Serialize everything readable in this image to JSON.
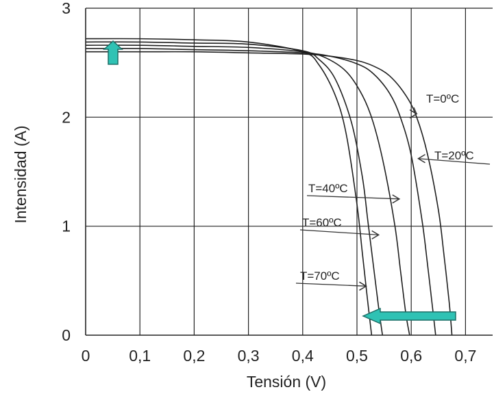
{
  "chart_data": {
    "type": "line",
    "title": "",
    "xlabel": "Tensión (V)",
    "ylabel": "Intensidad (A)",
    "xlim": [
      0,
      0.75
    ],
    "ylim": [
      0,
      3
    ],
    "grid": true,
    "x_ticks": [
      {
        "value": 0,
        "label": "0"
      },
      {
        "value": 0.1,
        "label": "0,1"
      },
      {
        "value": 0.2,
        "label": "0,2"
      },
      {
        "value": 0.3,
        "label": "0,3"
      },
      {
        "value": 0.4,
        "label": "0,4"
      },
      {
        "value": 0.5,
        "label": "0,5"
      },
      {
        "value": 0.6,
        "label": "0,6"
      },
      {
        "value": 0.7,
        "label": "0,7"
      }
    ],
    "y_ticks": [
      {
        "value": 0,
        "label": "0"
      },
      {
        "value": 1,
        "label": "1"
      },
      {
        "value": 2,
        "label": "2"
      },
      {
        "value": 3,
        "label": "3"
      }
    ],
    "series": [
      {
        "name": "T=0ºC",
        "x": [
          0,
          0.1,
          0.2,
          0.3,
          0.4,
          0.45,
          0.5,
          0.53,
          0.56,
          0.59,
          0.61,
          0.63,
          0.65,
          0.66,
          0.67,
          0.675
        ],
        "y": [
          2.6,
          2.6,
          2.6,
          2.59,
          2.58,
          2.56,
          2.52,
          2.47,
          2.38,
          2.2,
          2.0,
          1.66,
          1.15,
          0.75,
          0.3,
          0.0
        ]
      },
      {
        "name": "T=20ºC",
        "x": [
          0,
          0.1,
          0.2,
          0.3,
          0.4,
          0.45,
          0.5,
          0.53,
          0.56,
          0.58,
          0.6,
          0.62,
          0.63,
          0.64,
          0.645
        ],
        "y": [
          2.63,
          2.63,
          2.62,
          2.61,
          2.59,
          2.56,
          2.49,
          2.4,
          2.22,
          2.0,
          1.65,
          1.05,
          0.65,
          0.22,
          0.0
        ]
      },
      {
        "name": "T=40ºC",
        "x": [
          0,
          0.1,
          0.2,
          0.3,
          0.4,
          0.44,
          0.48,
          0.51,
          0.53,
          0.55,
          0.57,
          0.58,
          0.59,
          0.597
        ],
        "y": [
          2.66,
          2.66,
          2.65,
          2.64,
          2.6,
          2.55,
          2.42,
          2.2,
          1.95,
          1.55,
          1.0,
          0.6,
          0.2,
          0.0
        ]
      },
      {
        "name": "T=60ºC",
        "x": [
          0,
          0.1,
          0.2,
          0.3,
          0.4,
          0.43,
          0.46,
          0.49,
          0.51,
          0.52,
          0.53,
          0.54,
          0.547
        ],
        "y": [
          2.69,
          2.69,
          2.68,
          2.67,
          2.61,
          2.53,
          2.35,
          1.95,
          1.45,
          1.05,
          0.65,
          0.25,
          0.0
        ]
      },
      {
        "name": "T=70ºC",
        "x": [
          0,
          0.1,
          0.2,
          0.3,
          0.4,
          0.43,
          0.46,
          0.48,
          0.5,
          0.51,
          0.52,
          0.527
        ],
        "y": [
          2.72,
          2.72,
          2.71,
          2.69,
          2.6,
          2.48,
          2.2,
          1.85,
          1.2,
          0.75,
          0.3,
          0.0
        ]
      }
    ],
    "annotations": [
      {
        "text": "T=0ºC",
        "points_to": [
          0.61,
          2.03
        ]
      },
      {
        "text": "T=20ºC",
        "points_to": [
          0.613,
          1.62
        ]
      },
      {
        "text": "T=40ºC",
        "points_to": [
          0.578,
          1.25
        ]
      },
      {
        "text": "T=60ºC",
        "points_to": [
          0.54,
          0.92
        ]
      },
      {
        "text": "T=70ºC",
        "points_to": [
          0.517,
          0.45
        ]
      }
    ],
    "trend_arrows": [
      {
        "direction": "up",
        "meaning": "current increases with temperature",
        "color": "#2fc2b4"
      },
      {
        "direction": "left",
        "meaning": "voltage decreases with temperature",
        "color": "#2fc2b4"
      }
    ],
    "colors": {
      "line": "#1e1e1e",
      "grid": "#222222",
      "arrow_fill": "#2fc2b4",
      "arrow_stroke": "#1d6e66"
    }
  }
}
